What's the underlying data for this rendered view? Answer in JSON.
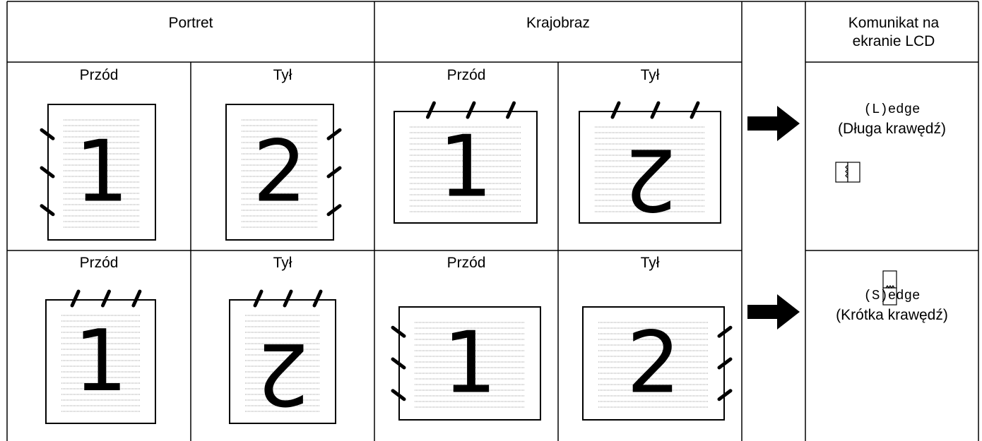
{
  "header": {
    "portrait": "Portret",
    "landscape": "Krajobraz",
    "lcd": "Komunikat na ekranie LCD"
  },
  "rows": [
    {
      "cells": [
        {
          "label": "Przód",
          "page": "1"
        },
        {
          "label": "Tył",
          "page": "2"
        },
        {
          "label": "Przód",
          "page": "1"
        },
        {
          "label": "Tył",
          "page": "2"
        }
      ],
      "lcd_code": "(L)edge",
      "lcd_text": "(Długa krawędź)"
    },
    {
      "cells": [
        {
          "label": "Przód",
          "page": "1"
        },
        {
          "label": "Tył",
          "page": "2"
        },
        {
          "label": "Przód",
          "page": "1"
        },
        {
          "label": "Tył",
          "page": "2"
        }
      ],
      "lcd_code": "(S)edge",
      "lcd_text": "(Krótka krawędź)"
    }
  ]
}
